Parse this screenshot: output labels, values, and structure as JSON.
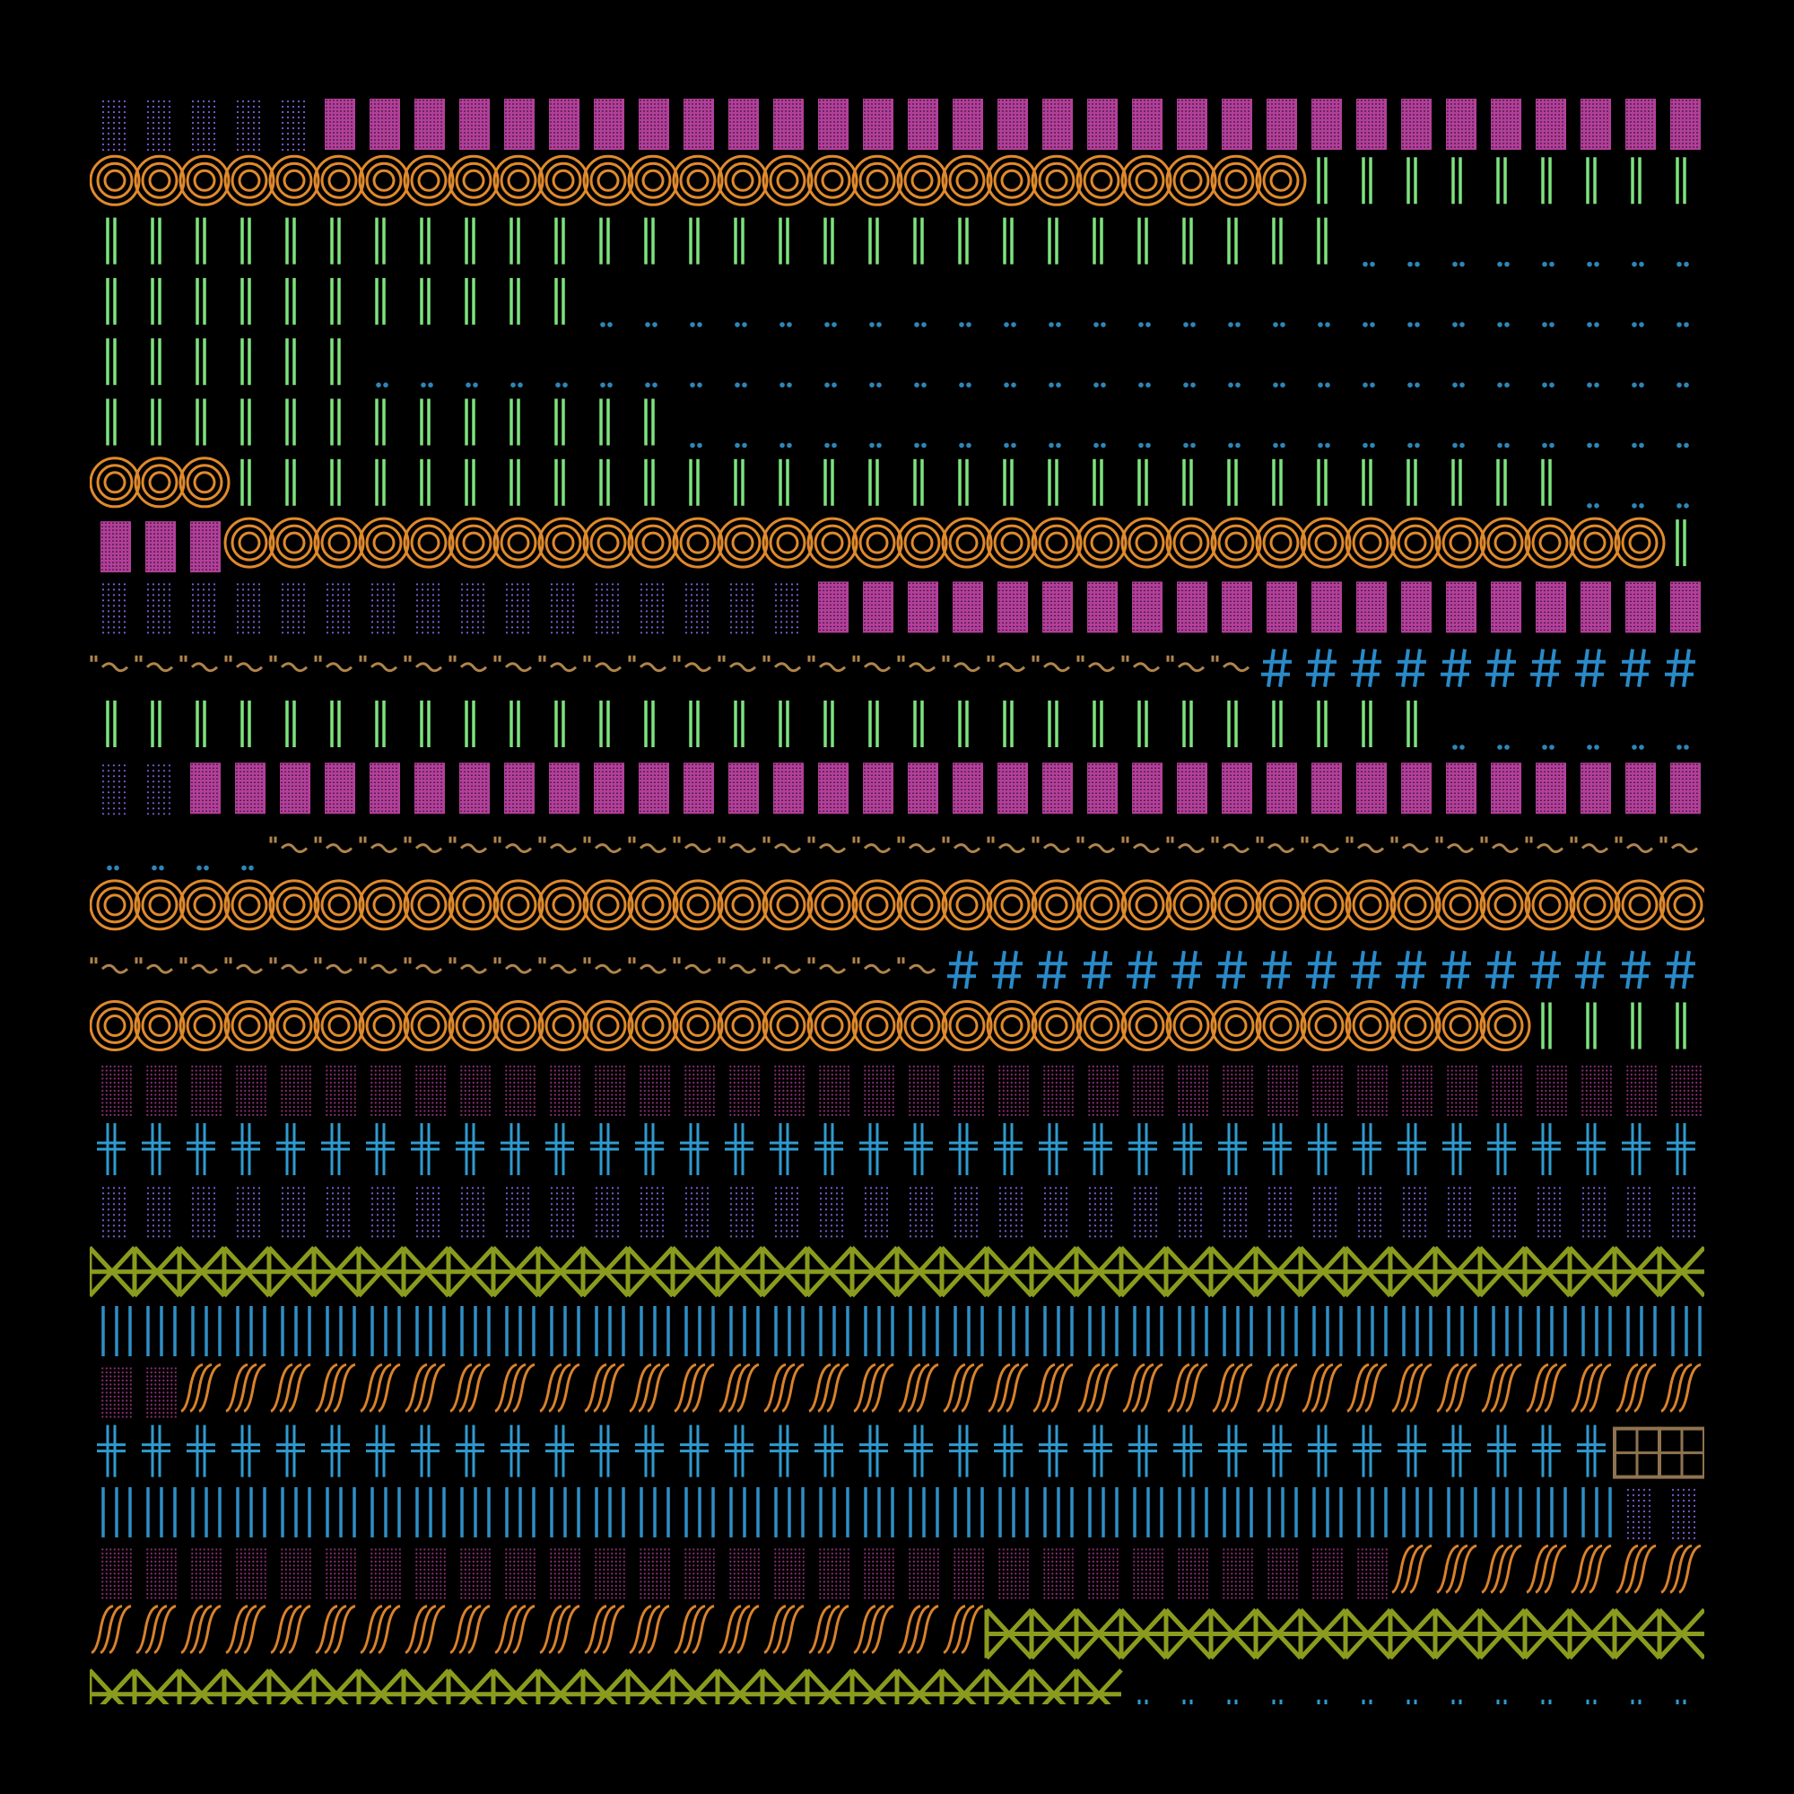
{
  "background": "#000000",
  "palette": {
    "dotted-violet": "#7b5fd6",
    "dotted-magenta-solid": "#b23f9a",
    "dotted-magenta-faint": "#8a2f73",
    "concentric-orange": "#e08a2c",
    "double-bar-green": "#7de37e",
    "double-dot-blue": "#2e86b8",
    "tilde-tan": "#b0844c",
    "hash-blue": "#2a8ac8",
    "double-cross-blue": "#2f9bd0",
    "bowtie-olive": "#8a9b1e",
    "tick-blue": "#2f8fc6",
    "slash-orange": "#d9822b",
    "grid-tan": "#8f7350"
  },
  "pattern_names": {
    "dv": "dotted-violet",
    "dm": "dotted-magenta-solid",
    "df": "dotted-magenta-faint",
    "oo": "concentric-orange",
    "gb": "double-bar-green",
    "bd": "double-dot-blue",
    "tt": "tilde-tan",
    "hs": "hash-blue",
    "dc": "double-cross-blue",
    "bw": "bowtie-olive",
    "tk": "tick-blue",
    "sl": "slash-orange",
    "gr": "grid-tan",
    "ub": "under-bar-blue"
  },
  "rows": [
    [
      [
        "dv",
        5
      ],
      [
        "dm",
        31
      ]
    ],
    [
      [
        "oo",
        27
      ],
      [
        "gb",
        9
      ]
    ],
    [
      [
        "gb",
        28
      ],
      [
        "bd",
        8
      ]
    ],
    [
      [
        "gb",
        11
      ],
      [
        "bd",
        25
      ]
    ],
    [
      [
        "gb",
        6
      ],
      [
        "bd",
        30
      ]
    ],
    [
      [
        "gb",
        13
      ],
      [
        "bd",
        23
      ]
    ],
    [
      [
        "oo",
        3
      ],
      [
        "gb",
        30
      ],
      [
        "bd",
        3
      ]
    ],
    [
      [
        "dm",
        3
      ],
      [
        "oo",
        32
      ],
      [
        "gb",
        1
      ]
    ],
    [
      [
        "dv",
        16
      ],
      [
        "dm",
        20
      ]
    ],
    [
      [
        "tt",
        26
      ],
      [
        "hs",
        10
      ]
    ],
    [
      [
        "gb",
        30
      ],
      [
        "bd",
        6
      ]
    ],
    [
      [
        "dv",
        2
      ],
      [
        "dm",
        34
      ]
    ],
    [
      [
        "bd",
        4
      ],
      [
        "tt",
        32
      ]
    ],
    [
      [
        "oo",
        36
      ]
    ],
    [
      [
        "tt",
        19
      ],
      [
        "hs",
        17
      ]
    ],
    [
      [
        "oo",
        32
      ],
      [
        "gb",
        4
      ]
    ],
    [
      [
        "df",
        36
      ]
    ],
    [
      [
        "dc",
        36
      ]
    ],
    [
      [
        "dv",
        36
      ]
    ],
    [
      [
        "bw",
        36
      ]
    ],
    [
      [
        "tk",
        36
      ]
    ],
    [
      [
        "df",
        2
      ],
      [
        "sl",
        34
      ]
    ],
    [
      [
        "dc",
        34
      ],
      [
        "gr",
        2
      ]
    ],
    [
      [
        "tk",
        34
      ],
      [
        "dv",
        2
      ]
    ],
    [
      [
        "df",
        29
      ],
      [
        "sl",
        7
      ]
    ],
    [
      [
        "sl",
        20
      ],
      [
        "bw",
        16
      ]
    ],
    [
      [
        "bw",
        23
      ],
      [
        "ub",
        13
      ]
    ]
  ]
}
